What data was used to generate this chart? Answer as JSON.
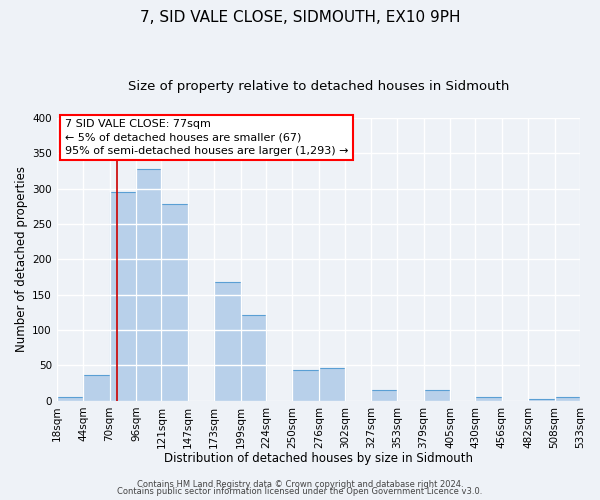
{
  "title": "7, SID VALE CLOSE, SIDMOUTH, EX10 9PH",
  "subtitle": "Size of property relative to detached houses in Sidmouth",
  "xlabel": "Distribution of detached houses by size in Sidmouth",
  "ylabel": "Number of detached properties",
  "bin_labels": [
    "18sqm",
    "44sqm",
    "70sqm",
    "96sqm",
    "121sqm",
    "147sqm",
    "173sqm",
    "199sqm",
    "224sqm",
    "250sqm",
    "276sqm",
    "302sqm",
    "327sqm",
    "353sqm",
    "379sqm",
    "405sqm",
    "430sqm",
    "456sqm",
    "482sqm",
    "508sqm",
    "533sqm"
  ],
  "bin_edges": [
    18,
    44,
    70,
    96,
    121,
    147,
    173,
    199,
    224,
    250,
    276,
    302,
    327,
    353,
    379,
    405,
    430,
    456,
    482,
    508,
    533
  ],
  "heights_20": [
    5,
    37,
    295,
    327,
    278,
    0,
    168,
    121,
    0,
    43,
    46,
    0,
    15,
    0,
    16,
    0,
    6,
    0,
    2,
    5
  ],
  "bar_color": "#b8d0ea",
  "bar_edge_color": "#5a9fd4",
  "ann_line1": "7 SID VALE CLOSE: 77sqm",
  "ann_line2": "← 5% of detached houses are smaller (67)",
  "ann_line3": "95% of semi-detached houses are larger (1,293) →",
  "vline_x": 77,
  "vline_color": "#cc0000",
  "ylim": [
    0,
    400
  ],
  "yticks": [
    0,
    50,
    100,
    150,
    200,
    250,
    300,
    350,
    400
  ],
  "footer_line1": "Contains HM Land Registry data © Crown copyright and database right 2024.",
  "footer_line2": "Contains public sector information licensed under the Open Government Licence v3.0.",
  "background_color": "#eef2f7",
  "grid_color": "#ffffff",
  "title_fontsize": 11,
  "subtitle_fontsize": 9.5,
  "axis_label_fontsize": 8.5,
  "tick_fontsize": 7.5,
  "ann_fontsize": 8,
  "footer_fontsize": 6
}
